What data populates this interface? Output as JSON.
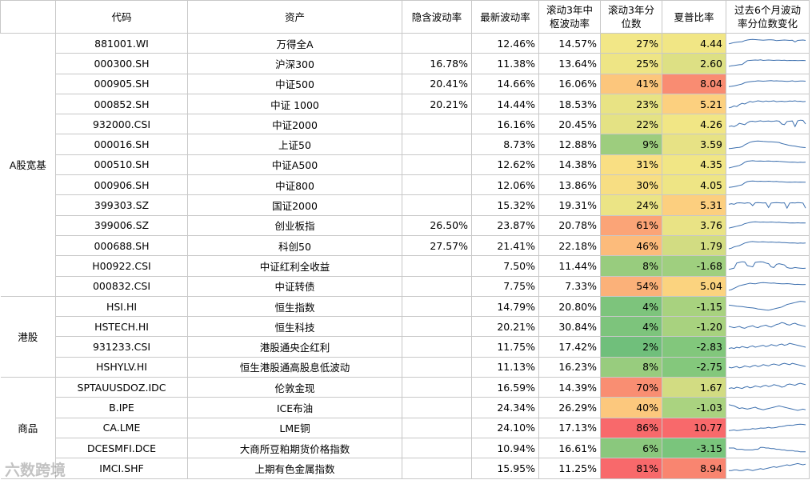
{
  "headers": {
    "code": "代码",
    "asset": "资产",
    "implied_vol": "隐含波动率",
    "latest_vol": "最新波动率",
    "rolling_center": "滚动3年中枢波动率",
    "rolling_pct": "滚动3年分位数",
    "sharpe": "夏普比率",
    "trend": "过去6个月波动率分位数变化"
  },
  "groups": [
    {
      "name": "A股宽基",
      "rows": [
        {
          "code": "881001.WI",
          "asset": "万得全A",
          "implied": "",
          "latest": "12.46%",
          "center": "14.57%",
          "pct": "27%",
          "sharpe": "4.44",
          "pct_color": "#f2e787",
          "sharpe_color": "#f1e685",
          "spark": [
            0.45,
            0.5,
            0.55,
            0.58,
            0.6,
            0.62,
            0.7,
            0.75,
            0.78,
            0.8,
            0.78,
            0.76,
            0.75,
            0.74,
            0.75,
            0.76,
            0.77,
            0.75,
            0.7,
            0.72,
            0.74,
            0.75,
            0.74,
            0.72,
            0.73,
            0.6,
            0.72,
            0.74,
            0.75,
            0.72
          ]
        },
        {
          "code": "000300.SH",
          "asset": "沪深300",
          "implied": "16.78%",
          "latest": "11.38%",
          "center": "13.64%",
          "pct": "25%",
          "sharpe": "2.60",
          "pct_color": "#eee585",
          "sharpe_color": "#dde084",
          "spark": [
            0.25,
            0.3,
            0.32,
            0.35,
            0.38,
            0.4,
            0.55,
            0.7,
            0.72,
            0.74,
            0.75,
            0.74,
            0.76,
            0.72,
            0.73,
            0.75,
            0.74,
            0.72,
            0.73,
            0.74,
            0.72,
            0.73,
            0.7,
            0.72,
            0.71,
            0.72,
            0.7,
            0.71,
            0.72,
            0.7
          ]
        },
        {
          "code": "000905.SH",
          "asset": "中证500",
          "implied": "20.41%",
          "latest": "14.66%",
          "center": "16.06%",
          "pct": "41%",
          "sharpe": "8.04",
          "pct_color": "#fcc67c",
          "sharpe_color": "#f98c72",
          "spark": [
            0.3,
            0.32,
            0.35,
            0.4,
            0.45,
            0.5,
            0.6,
            0.65,
            0.68,
            0.7,
            0.72,
            0.75,
            0.74,
            0.72,
            0.73,
            0.75,
            0.76,
            0.74,
            0.75,
            0.73,
            0.74,
            0.72,
            0.7,
            0.72,
            0.75,
            0.7,
            0.72,
            0.74,
            0.73,
            0.72
          ]
        },
        {
          "code": "000852.SH",
          "asset": "中证 1000",
          "implied": "20.21%",
          "latest": "14.44%",
          "center": "18.53%",
          "pct": "23%",
          "sharpe": "5.21",
          "pct_color": "#e8e384",
          "sharpe_color": "#fcd07f",
          "spark": [
            0.2,
            0.25,
            0.35,
            0.3,
            0.45,
            0.55,
            0.5,
            0.6,
            0.7,
            0.65,
            0.7,
            0.75,
            0.72,
            0.68,
            0.74,
            0.7,
            0.72,
            0.75,
            0.68,
            0.7,
            0.72,
            0.69,
            0.7,
            0.74,
            0.72,
            0.75,
            0.7,
            0.72,
            0.68,
            0.7
          ]
        },
        {
          "code": "932000.CSI",
          "asset": "中证2000",
          "implied": "",
          "latest": "16.16%",
          "center": "20.45%",
          "pct": "22%",
          "sharpe": "4.26",
          "pct_color": "#e4e284",
          "sharpe_color": "#f1e685",
          "spark": [
            0.3,
            0.35,
            0.3,
            0.4,
            0.55,
            0.5,
            0.45,
            0.6,
            0.7,
            0.72,
            0.68,
            0.72,
            0.75,
            0.7,
            0.72,
            0.74,
            0.7,
            0.72,
            0.75,
            0.72,
            0.5,
            0.45,
            0.7,
            0.72,
            0.74,
            0.3,
            0.75,
            0.8,
            0.78,
            0.5
          ]
        },
        {
          "code": "000016.SH",
          "asset": "上证50",
          "implied": "",
          "latest": "8.73%",
          "center": "12.88%",
          "pct": "9%",
          "sharpe": "3.59",
          "pct_color": "#9dcd7e",
          "sharpe_color": "#e7e285",
          "spark": [
            0.2,
            0.22,
            0.25,
            0.28,
            0.3,
            0.35,
            0.5,
            0.6,
            0.7,
            0.75,
            0.78,
            0.8,
            0.78,
            0.76,
            0.75,
            0.74,
            0.73,
            0.72,
            0.7,
            0.68,
            0.6,
            0.55,
            0.5,
            0.45,
            0.42,
            0.4,
            0.35,
            0.32,
            0.3,
            0.28
          ]
        },
        {
          "code": "000510.SH",
          "asset": "中证A500",
          "implied": "",
          "latest": "12.62%",
          "center": "14.38%",
          "pct": "31%",
          "sharpe": "4.35",
          "pct_color": "#f9df83",
          "sharpe_color": "#f1e685",
          "spark": [
            0.25,
            0.3,
            0.35,
            0.4,
            0.45,
            0.55,
            0.7,
            0.78,
            0.8,
            0.82,
            0.8,
            0.79,
            0.8,
            0.78,
            0.79,
            0.8,
            0.78,
            0.77,
            0.78,
            0.76,
            0.75,
            0.74,
            0.72,
            0.7,
            0.71,
            0.7,
            0.68,
            0.7,
            0.69,
            0.7
          ]
        },
        {
          "code": "000906.SH",
          "asset": "中证800",
          "implied": "",
          "latest": "12.06%",
          "center": "13.86%",
          "pct": "30%",
          "sharpe": "4.05",
          "pct_color": "#f7de83",
          "sharpe_color": "#eee585",
          "spark": [
            0.3,
            0.32,
            0.35,
            0.4,
            0.45,
            0.5,
            0.65,
            0.75,
            0.78,
            0.8,
            0.78,
            0.77,
            0.78,
            0.76,
            0.77,
            0.78,
            0.76,
            0.75,
            0.76,
            0.74,
            0.73,
            0.72,
            0.7,
            0.71,
            0.7,
            0.72,
            0.7,
            0.71,
            0.7,
            0.7
          ]
        },
        {
          "code": "399303.SZ",
          "asset": "国证2000",
          "implied": "",
          "latest": "15.32%",
          "center": "19.31%",
          "pct": "24%",
          "sharpe": "5.31",
          "pct_color": "#ebe485",
          "sharpe_color": "#fccf7f",
          "spark": [
            0.6,
            0.65,
            0.6,
            0.7,
            0.72,
            0.7,
            0.68,
            0.72,
            0.7,
            0.5,
            0.72,
            0.74,
            0.72,
            0.7,
            0.72,
            0.35,
            0.7,
            0.72,
            0.74,
            0.72,
            0.7,
            0.72,
            0.3,
            0.7,
            0.72,
            0.7,
            0.74,
            0.72,
            0.7,
            0.3
          ]
        },
        {
          "code": "399006.SZ",
          "asset": "创业板指",
          "implied": "26.50%",
          "latest": "23.87%",
          "center": "20.78%",
          "pct": "61%",
          "sharpe": "3.76",
          "pct_color": "#fba477",
          "sharpe_color": "#e9e385",
          "spark": [
            0.3,
            0.35,
            0.4,
            0.45,
            0.5,
            0.55,
            0.65,
            0.7,
            0.75,
            0.78,
            0.8,
            0.78,
            0.77,
            0.78,
            0.76,
            0.77,
            0.78,
            0.76,
            0.75,
            0.76,
            0.74,
            0.73,
            0.72,
            0.7,
            0.71,
            0.7,
            0.72,
            0.7,
            0.71,
            0.7
          ]
        },
        {
          "code": "000688.SH",
          "asset": "科创50",
          "implied": "27.57%",
          "latest": "21.41%",
          "center": "22.18%",
          "pct": "46%",
          "sharpe": "1.79",
          "pct_color": "#fcbb7b",
          "sharpe_color": "#d2dc82",
          "spark": [
            0.25,
            0.3,
            0.4,
            0.45,
            0.5,
            0.6,
            0.7,
            0.75,
            0.8,
            0.82,
            0.8,
            0.78,
            0.79,
            0.8,
            0.78,
            0.77,
            0.78,
            0.76,
            0.75,
            0.76,
            0.74,
            0.73,
            0.72,
            0.7,
            0.71,
            0.7,
            0.68,
            0.7,
            0.69,
            0.7
          ]
        },
        {
          "code": "H00922.CSI",
          "asset": "中证红利全收益",
          "implied": "",
          "latest": "7.50%",
          "center": "11.44%",
          "pct": "8%",
          "sharpe": "-1.68",
          "pct_color": "#98cc7e",
          "sharpe_color": "#9fcf7f",
          "spark": [
            0.2,
            0.25,
            0.3,
            0.7,
            0.75,
            0.8,
            0.78,
            0.5,
            0.45,
            0.4,
            0.75,
            0.78,
            0.8,
            0.78,
            0.7,
            0.65,
            0.4,
            0.35,
            0.6,
            0.65,
            0.6,
            0.55,
            0.35,
            0.3,
            0.3,
            0.35,
            0.32,
            0.3,
            0.28,
            0.3
          ]
        },
        {
          "code": "000832.CSI",
          "asset": "中证转债",
          "implied": "",
          "latest": "7.75%",
          "center": "7.33%",
          "pct": "54%",
          "sharpe": "5.04",
          "pct_color": "#fbb179",
          "sharpe_color": "#fbd37f",
          "spark": [
            0.2,
            0.25,
            0.35,
            0.45,
            0.55,
            0.6,
            0.65,
            0.7,
            0.75,
            0.72,
            0.7,
            0.75,
            0.78,
            0.8,
            0.78,
            0.76,
            0.75,
            0.76,
            0.74,
            0.72,
            0.7,
            0.7,
            0.72,
            0.7,
            0.68,
            0.65,
            0.66,
            0.65,
            0.64,
            0.65
          ]
        }
      ]
    },
    {
      "name": "港股",
      "rows": [
        {
          "code": "HSI.HI",
          "asset": "恒生指数",
          "implied": "",
          "latest": "14.79%",
          "center": "20.80%",
          "pct": "4%",
          "sharpe": "-1.15",
          "pct_color": "#7dc47c",
          "sharpe_color": "#a8d27f",
          "spark": [
            0.6,
            0.58,
            0.55,
            0.52,
            0.5,
            0.48,
            0.45,
            0.42,
            0.4,
            0.38,
            0.35,
            0.3,
            0.28,
            0.25,
            0.22,
            0.2,
            0.25,
            0.3,
            0.35,
            0.4,
            0.45,
            0.55,
            0.65,
            0.7,
            0.75,
            0.8,
            0.85,
            0.9,
            0.88,
            0.85
          ]
        },
        {
          "code": "HSTECH.HI",
          "asset": "恒生科技",
          "implied": "",
          "latest": "20.21%",
          "center": "30.84%",
          "pct": "4%",
          "sharpe": "-1.20",
          "pct_color": "#7dc47c",
          "sharpe_color": "#a8d27f",
          "spark": [
            0.5,
            0.45,
            0.4,
            0.45,
            0.5,
            0.4,
            0.35,
            0.45,
            0.5,
            0.55,
            0.45,
            0.4,
            0.5,
            0.55,
            0.6,
            0.5,
            0.45,
            0.55,
            0.65,
            0.7,
            0.8,
            0.75,
            0.65,
            0.6,
            0.7,
            0.75,
            0.65,
            0.6,
            0.55,
            0.5
          ]
        },
        {
          "code": "931233.CSI",
          "asset": "港股通央企红利",
          "implied": "",
          "latest": "11.75%",
          "center": "17.42%",
          "pct": "2%",
          "sharpe": "-2.83",
          "pct_color": "#70bf7b",
          "sharpe_color": "#82c77c",
          "spark": [
            0.4,
            0.45,
            0.4,
            0.5,
            0.45,
            0.55,
            0.5,
            0.45,
            0.55,
            0.6,
            0.5,
            0.55,
            0.6,
            0.65,
            0.55,
            0.6,
            0.7,
            0.65,
            0.6,
            0.7,
            0.75,
            0.65,
            0.7,
            0.8,
            0.75,
            0.7,
            0.65,
            0.6,
            0.55,
            0.5
          ]
        },
        {
          "code": "HSHYLV.HI",
          "asset": "恒生港股通高股息低波动",
          "implied": "",
          "latest": "11.13%",
          "center": "16.23%",
          "pct": "8%",
          "sharpe": "-2.75",
          "pct_color": "#98cc7e",
          "sharpe_color": "#84c87c",
          "spark": [
            0.5,
            0.45,
            0.5,
            0.55,
            0.45,
            0.5,
            0.6,
            0.55,
            0.5,
            0.6,
            0.65,
            0.55,
            0.6,
            0.7,
            0.65,
            0.6,
            0.7,
            0.75,
            0.7,
            0.65,
            0.75,
            0.8,
            0.75,
            0.7,
            0.8,
            0.75,
            0.7,
            0.65,
            0.6,
            0.55
          ]
        }
      ]
    },
    {
      "name": "商品",
      "rows": [
        {
          "code": "SPTAUUSDOZ.IDC",
          "asset": "伦敦金现",
          "implied": "",
          "latest": "16.59%",
          "center": "14.39%",
          "pct": "70%",
          "sharpe": "1.67",
          "pct_color": "#f98e72",
          "sharpe_color": "#d2dc82",
          "spark": [
            0.4,
            0.45,
            0.4,
            0.5,
            0.45,
            0.4,
            0.5,
            0.55,
            0.45,
            0.5,
            0.6,
            0.55,
            0.5,
            0.6,
            0.65,
            0.55,
            0.6,
            0.7,
            0.65,
            0.6,
            0.5,
            0.55,
            0.7,
            0.75,
            0.7,
            0.65,
            0.75,
            0.8,
            0.75,
            0.7
          ]
        },
        {
          "code": "B.IPE",
          "asset": "ICE布油",
          "implied": "",
          "latest": "24.34%",
          "center": "26.29%",
          "pct": "40%",
          "sharpe": "-1.03",
          "pct_color": "#fcc87d",
          "sharpe_color": "#aad380",
          "spark": [
            0.7,
            0.65,
            0.6,
            0.5,
            0.4,
            0.45,
            0.4,
            0.35,
            0.4,
            0.45,
            0.5,
            0.4,
            0.35,
            0.3,
            0.35,
            0.4,
            0.45,
            0.5,
            0.55,
            0.6,
            0.55,
            0.5,
            0.45,
            0.4,
            0.35,
            0.3,
            0.25,
            0.3,
            0.35,
            0.3
          ]
        },
        {
          "code": "CA.LME",
          "asset": "LME铜",
          "implied": "",
          "latest": "24.10%",
          "center": "17.13%",
          "pct": "86%",
          "sharpe": "10.77",
          "pct_color": "#f8696b",
          "sharpe_color": "#f8696b",
          "spark": [
            0.3,
            0.32,
            0.35,
            0.3,
            0.32,
            0.35,
            0.4,
            0.38,
            0.4,
            0.45,
            0.42,
            0.45,
            0.5,
            0.48,
            0.5,
            0.55,
            0.5,
            0.52,
            0.55,
            0.6,
            0.62,
            0.65,
            0.7,
            0.72,
            0.7,
            0.75,
            0.78,
            0.8,
            0.78,
            0.75
          ]
        },
        {
          "code": "DCESMFI.DCE",
          "asset": "大商所豆粕期货价格指数",
          "implied": "",
          "latest": "10.94%",
          "center": "16.61%",
          "pct": "6%",
          "sharpe": "-3.15",
          "pct_color": "#8ac87d",
          "sharpe_color": "#7ac57c",
          "spark": [
            0.5,
            0.5,
            0.5,
            0.4,
            0.4,
            0.4,
            0.35,
            0.35,
            0.35,
            0.35,
            0.4,
            0.4,
            0.55,
            0.55,
            0.5,
            0.5,
            0.45,
            0.45,
            0.4,
            0.4,
            0.35,
            0.35,
            0.3,
            0.3,
            0.3,
            0.25,
            0.25,
            0.2,
            0.2,
            0.2
          ]
        },
        {
          "code": "IMCI.SHF",
          "asset": "上期有色金属指数",
          "implied": "",
          "latest": "15.95%",
          "center": "11.25%",
          "pct": "81%",
          "sharpe": "8.94",
          "pct_color": "#f8696b",
          "sharpe_color": "#f98570",
          "spark": [
            0.3,
            0.3,
            0.35,
            0.35,
            0.3,
            0.3,
            0.35,
            0.4,
            0.35,
            0.3,
            0.35,
            0.4,
            0.45,
            0.4,
            0.45,
            0.5,
            0.55,
            0.6,
            0.55,
            0.6,
            0.65,
            0.7,
            0.75,
            0.7,
            0.75,
            0.8,
            0.85,
            0.8,
            0.75,
            0.8
          ]
        }
      ]
    }
  ],
  "watermark": "六数跨境",
  "spark_color": "#3c6fae"
}
